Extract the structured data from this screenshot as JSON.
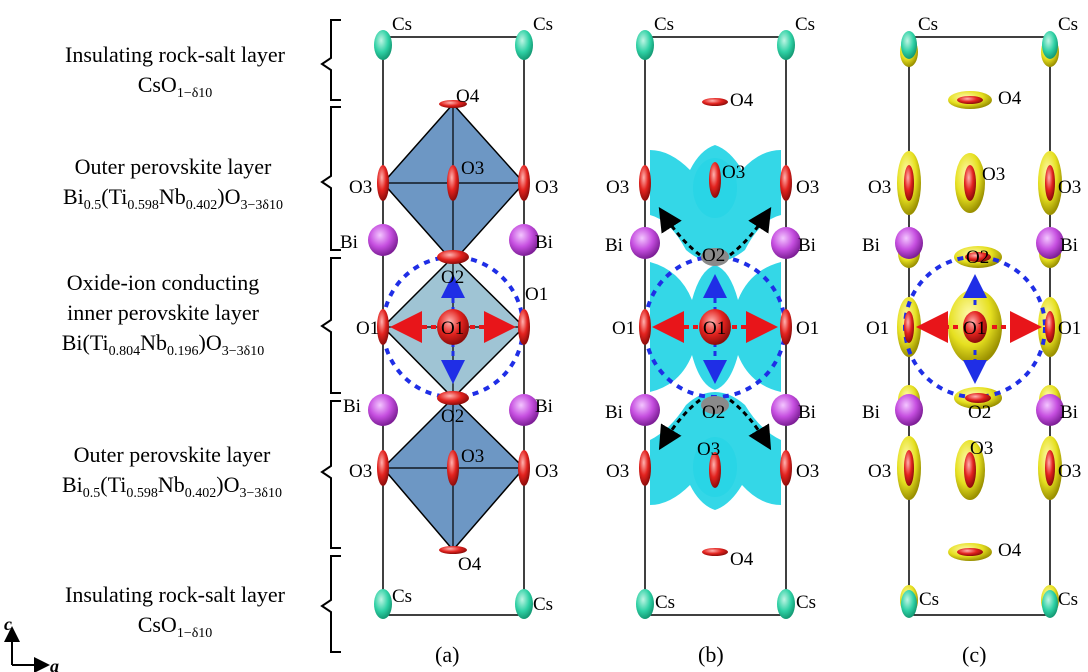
{
  "layers": [
    {
      "name": "Insulating rock-salt layer",
      "formula": {
        "base": "CsO",
        "sub": "1−δ10"
      }
    },
    {
      "name": "Outer perovskite layer",
      "formula_parts": [
        [
          "Bi",
          ""
        ],
        [
          "0.5",
          ""
        ],
        [
          "(Ti",
          ""
        ],
        [
          "0.598",
          ""
        ],
        [
          "Nb",
          ""
        ],
        [
          "0.402",
          ""
        ],
        [
          ")O",
          ""
        ],
        [
          "3−3δ10",
          ""
        ]
      ]
    },
    {
      "name": "Oxide-ion conducting",
      "name2": "inner perovskite layer",
      "formula_parts": [
        [
          "Bi(Ti",
          ""
        ],
        [
          "0.804",
          ""
        ],
        [
          "Nb",
          ""
        ],
        [
          "0.196",
          ""
        ],
        [
          ")O",
          ""
        ],
        [
          "3−3δ10",
          ""
        ]
      ]
    },
    {
      "name": "Outer perovskite layer",
      "formula_parts": [
        [
          "Bi",
          ""
        ],
        [
          "0.5",
          ""
        ],
        [
          "(Ti",
          ""
        ],
        [
          "0.598",
          ""
        ],
        [
          "Nb",
          ""
        ],
        [
          "0.402",
          ""
        ],
        [
          ")O",
          ""
        ],
        [
          "3−3δ10",
          ""
        ]
      ]
    },
    {
      "name": "Insulating rock-salt layer",
      "formula": {
        "base": "CsO",
        "sub": "1−δ10"
      }
    }
  ],
  "axes": {
    "c": "c",
    "a": "a"
  },
  "panels": [
    {
      "label": "(a)"
    },
    {
      "label": "(b)"
    },
    {
      "label": "(c)"
    }
  ],
  "atom_labels": {
    "cs": "Cs",
    "o4": "O4",
    "o3": "O3",
    "bi": "Bi",
    "o2": "O2",
    "o1": "O1"
  },
  "colors": {
    "cs": "#2fd1a5",
    "bi": "#c64fe0",
    "oxygen": "#e3231f",
    "octa_outer": "#6d97c4",
    "octa_inner": "#9fc4d4",
    "isosurface_b": "#29d5e6",
    "isosurface_c": "#e6e020",
    "arrow_blue": "#1f2ee6",
    "arrow_red": "#e8151a",
    "arrow_black": "#000000"
  }
}
